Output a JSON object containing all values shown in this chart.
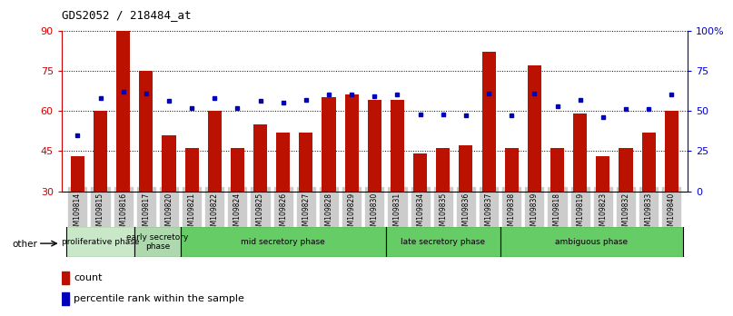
{
  "title": "GDS2052 / 218484_at",
  "samples": [
    "GSM109814",
    "GSM109815",
    "GSM109816",
    "GSM109817",
    "GSM109820",
    "GSM109821",
    "GSM109822",
    "GSM109824",
    "GSM109825",
    "GSM109826",
    "GSM109827",
    "GSM109828",
    "GSM109829",
    "GSM109830",
    "GSM109831",
    "GSM109834",
    "GSM109835",
    "GSM109836",
    "GSM109837",
    "GSM109838",
    "GSM109839",
    "GSM109818",
    "GSM109819",
    "GSM109823",
    "GSM109832",
    "GSM109833",
    "GSM109840"
  ],
  "counts": [
    43,
    60,
    90,
    75,
    51,
    46,
    60,
    46,
    55,
    52,
    52,
    65,
    66,
    64,
    64,
    44,
    46,
    47,
    82,
    46,
    77,
    46,
    59,
    43,
    46,
    52,
    60
  ],
  "percentile": [
    35,
    58,
    62,
    61,
    56,
    52,
    58,
    52,
    56,
    55,
    57,
    60,
    60,
    59,
    60,
    48,
    48,
    47,
    61,
    47,
    61,
    53,
    57,
    46,
    51,
    51,
    60
  ],
  "ylim_left": [
    30,
    90
  ],
  "ylim_right": [
    0,
    100
  ],
  "yticks_left": [
    30,
    45,
    60,
    75,
    90
  ],
  "yticks_right": [
    0,
    25,
    50,
    75,
    100
  ],
  "bar_color": "#BB1100",
  "dot_color": "#0000BB",
  "phases": [
    {
      "label": "proliferative phase",
      "start": 0,
      "end": 4,
      "color": "#c8e8c8"
    },
    {
      "label": "early secretory\nphase",
      "start": 4,
      "end": 6,
      "color": "#b0deb0"
    },
    {
      "label": "mid secretory phase",
      "start": 6,
      "end": 15,
      "color": "#66cc66"
    },
    {
      "label": "late secretory phase",
      "start": 15,
      "end": 21,
      "color": "#66cc66"
    },
    {
      "label": "ambiguous phase",
      "start": 21,
      "end": 27,
      "color": "#66cc66"
    }
  ],
  "legend_count_label": "count",
  "legend_pct_label": "percentile rank within the sample",
  "other_label": "other",
  "yaxis_left_color": "#CC0000",
  "yaxis_right_color": "#0000CC",
  "tick_bg_color": "#cccccc",
  "phase_border_color": "#000000",
  "grid_dotted_color": "#000000"
}
